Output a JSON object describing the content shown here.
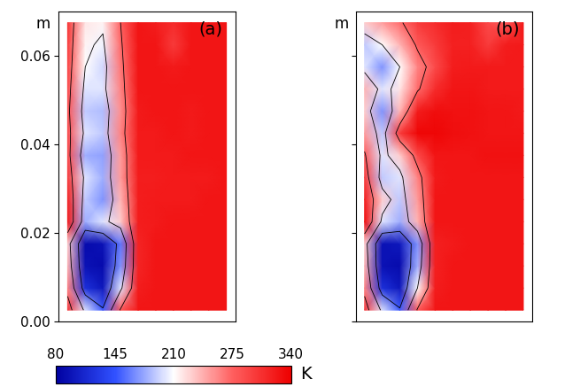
{
  "chart_data": [
    {
      "type": "heatmap",
      "title": "(a)",
      "y_label": "m",
      "tick_labels": "y",
      "ylim": [
        0,
        0.07
      ],
      "yticks": [
        {
          "value": 0,
          "label": "0.00"
        },
        {
          "value": 0.02,
          "label": "0.02"
        },
        {
          "value": 0.04,
          "label": "0.04"
        },
        {
          "value": 0.06,
          "label": "0.06"
        }
      ],
      "y": [
        0.0025,
        0.0075,
        0.0125,
        0.0175,
        0.0225,
        0.0275,
        0.0325,
        0.0375,
        0.0425,
        0.0475,
        0.0525,
        0.0575,
        0.0625,
        0.0675
      ],
      "cells": [
        [
          300,
          200,
          150,
          280,
          325,
          325,
          325,
          325,
          325,
          325
        ],
        [
          260,
          120,
          100,
          200,
          320,
          325,
          325,
          325,
          325,
          325
        ],
        [
          240,
          95,
          90,
          170,
          315,
          325,
          325,
          325,
          325,
          325
        ],
        [
          230,
          90,
          95,
          160,
          315,
          325,
          325,
          325,
          325,
          325
        ],
        [
          320,
          180,
          200,
          230,
          320,
          322,
          325,
          325,
          325,
          325
        ],
        [
          315,
          190,
          170,
          240,
          320,
          322,
          322,
          322,
          325,
          325
        ],
        [
          300,
          200,
          180,
          250,
          320,
          320,
          322,
          322,
          322,
          325
        ],
        [
          290,
          180,
          175,
          250,
          322,
          322,
          322,
          325,
          325,
          325
        ],
        [
          290,
          200,
          190,
          260,
          322,
          322,
          325,
          322,
          325,
          325
        ],
        [
          285,
          190,
          185,
          255,
          322,
          325,
          325,
          322,
          325,
          325
        ],
        [
          290,
          200,
          200,
          260,
          325,
          325,
          325,
          325,
          325,
          325
        ],
        [
          295,
          210,
          195,
          265,
          325,
          325,
          322,
          325,
          325,
          325
        ],
        [
          300,
          215,
          205,
          270,
          325,
          325,
          300,
          325,
          325,
          325
        ],
        [
          305,
          220,
          215,
          275,
          325,
          320,
          310,
          325,
          325,
          325
        ]
      ]
    },
    {
      "type": "heatmap",
      "title": "(b)",
      "y_label": "m",
      "tick_labels": false,
      "ylim": [
        0,
        0.07
      ],
      "yticks": [
        {
          "value": 0,
          "label": ""
        },
        {
          "value": 0.02,
          "label": ""
        },
        {
          "value": 0.04,
          "label": ""
        },
        {
          "value": 0.06,
          "label": ""
        }
      ],
      "y": [
        0.0025,
        0.0075,
        0.0125,
        0.0175,
        0.0225,
        0.0275,
        0.0325,
        0.0375,
        0.0425,
        0.0475,
        0.0525,
        0.0575,
        0.0625,
        0.0675
      ],
      "cells": [
        [
          300,
          200,
          150,
          280,
          325,
          325,
          325,
          325,
          325,
          325
        ],
        [
          260,
          120,
          100,
          210,
          320,
          325,
          325,
          325,
          325,
          325
        ],
        [
          240,
          95,
          90,
          180,
          318,
          325,
          325,
          325,
          325,
          325
        ],
        [
          230,
          95,
          100,
          170,
          318,
          322,
          325,
          325,
          325,
          325
        ],
        [
          330,
          200,
          180,
          240,
          325,
          325,
          325,
          325,
          325,
          325
        ],
        [
          320,
          230,
          190,
          250,
          325,
          325,
          325,
          325,
          325,
          325
        ],
        [
          300,
          190,
          200,
          260,
          322,
          325,
          325,
          325,
          325,
          325
        ],
        [
          280,
          200,
          230,
          290,
          325,
          325,
          325,
          328,
          328,
          328
        ],
        [
          250,
          190,
          300,
          335,
          335,
          330,
          328,
          325,
          325,
          325
        ],
        [
          230,
          170,
          240,
          320,
          330,
          328,
          328,
          325,
          325,
          322
        ],
        [
          240,
          200,
          220,
          270,
          310,
          325,
          325,
          322,
          322,
          322
        ],
        [
          200,
          170,
          210,
          260,
          290,
          320,
          322,
          322,
          322,
          322
        ],
        [
          190,
          210,
          240,
          280,
          300,
          318,
          318,
          300,
          320,
          322
        ],
        [
          230,
          250,
          270,
          300,
          310,
          320,
          318,
          290,
          280,
          322
        ]
      ]
    }
  ],
  "colorbar": {
    "range": [
      80,
      340
    ],
    "ticks": [
      80,
      145,
      210,
      275,
      340
    ],
    "label": "K"
  }
}
